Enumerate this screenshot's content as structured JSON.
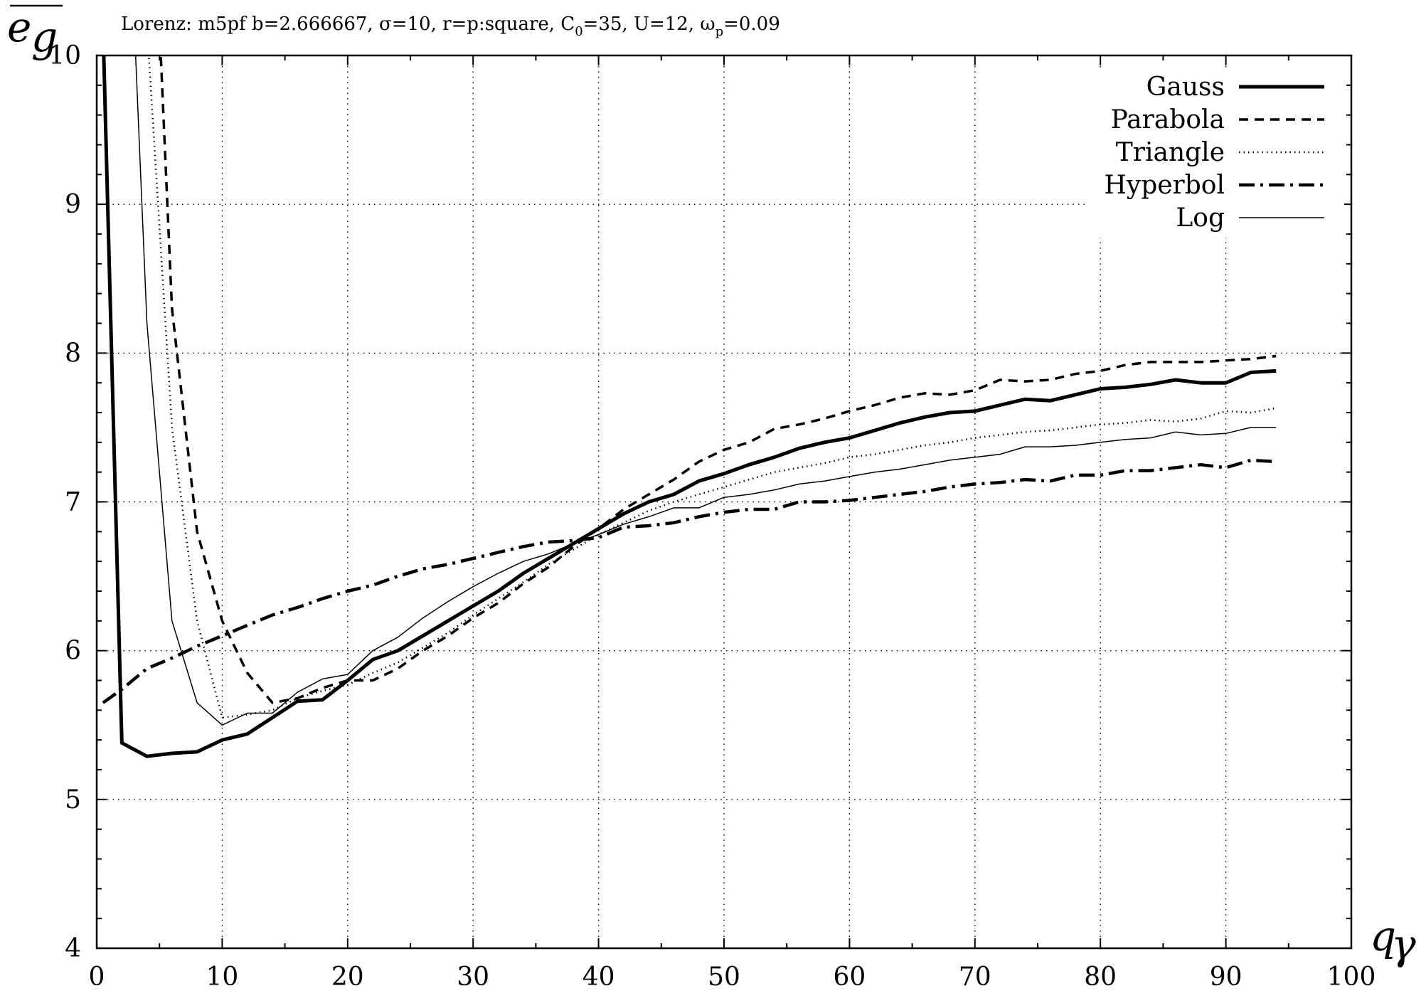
{
  "chart_data": {
    "type": "line",
    "title": {
      "prefix": "Lorenz: m5pf b=2.666667, σ=10, r=p:square, C",
      "c_sub": "0",
      "middle": "=35, U=12, ω",
      "w_sub": "p",
      "suffix": "=0.09"
    },
    "xlabel": {
      "base": "q",
      "sub": "γ"
    },
    "ylabel": "e",
    "ylabel_sub": "g",
    "xlim": [
      0,
      100
    ],
    "ylim": [
      4,
      10
    ],
    "xticks": [
      0,
      10,
      20,
      30,
      40,
      50,
      60,
      70,
      80,
      90,
      100
    ],
    "yticks": [
      4,
      5,
      6,
      7,
      8,
      9,
      10
    ],
    "grid": true,
    "legend_position": "top-right",
    "series": [
      {
        "name": "Gauss",
        "style": "thick-solid",
        "x": [
          0.5,
          2,
          4,
          6,
          8,
          10,
          12,
          14,
          16,
          18,
          20,
          22,
          24,
          26,
          28,
          30,
          32,
          34,
          36,
          38,
          40,
          42,
          44,
          46,
          48,
          50,
          52,
          54,
          56,
          58,
          60,
          62,
          64,
          66,
          68,
          70,
          72,
          74,
          76,
          78,
          80,
          82,
          84,
          86,
          88,
          90,
          92,
          94
        ],
        "y": [
          10.2,
          5.38,
          5.29,
          5.31,
          5.32,
          5.4,
          5.44,
          5.55,
          5.66,
          5.67,
          5.8,
          5.94,
          6.0,
          6.1,
          6.2,
          6.3,
          6.4,
          6.52,
          6.62,
          6.72,
          6.82,
          6.92,
          7.0,
          7.05,
          7.14,
          7.19,
          7.25,
          7.3,
          7.36,
          7.4,
          7.43,
          7.48,
          7.53,
          7.57,
          7.6,
          7.61,
          7.65,
          7.69,
          7.68,
          7.72,
          7.76,
          7.77,
          7.79,
          7.82,
          7.8,
          7.8,
          7.87,
          7.88
        ]
      },
      {
        "name": "Parabola",
        "style": "dashed",
        "x": [
          5,
          6,
          8,
          10,
          12,
          14,
          16,
          18,
          20,
          22,
          24,
          26,
          28,
          30,
          32,
          34,
          36,
          38,
          40,
          42,
          44,
          46,
          48,
          50,
          52,
          54,
          56,
          58,
          60,
          62,
          64,
          66,
          68,
          70,
          72,
          74,
          76,
          78,
          80,
          82,
          84,
          86,
          88,
          90,
          92,
          94
        ],
        "y": [
          10.2,
          8.3,
          6.8,
          6.2,
          5.85,
          5.65,
          5.68,
          5.75,
          5.8,
          5.8,
          5.88,
          6.0,
          6.1,
          6.22,
          6.32,
          6.45,
          6.56,
          6.7,
          6.82,
          6.95,
          7.05,
          7.15,
          7.27,
          7.35,
          7.4,
          7.49,
          7.52,
          7.56,
          7.61,
          7.65,
          7.7,
          7.73,
          7.72,
          7.75,
          7.82,
          7.81,
          7.82,
          7.86,
          7.88,
          7.92,
          7.94,
          7.94,
          7.94,
          7.95,
          7.96,
          7.98
        ]
      },
      {
        "name": "Triangle",
        "style": "dotted",
        "x": [
          4,
          6,
          8,
          10,
          12,
          14,
          16,
          18,
          20,
          22,
          24,
          26,
          28,
          30,
          32,
          34,
          36,
          38,
          40,
          42,
          44,
          46,
          48,
          50,
          52,
          54,
          56,
          58,
          60,
          62,
          64,
          66,
          68,
          70,
          72,
          74,
          76,
          78,
          80,
          82,
          84,
          86,
          88,
          90,
          92,
          94
        ],
        "y": [
          10.2,
          7.5,
          6.2,
          5.55,
          5.57,
          5.6,
          5.68,
          5.73,
          5.77,
          5.85,
          5.92,
          6.02,
          6.12,
          6.24,
          6.35,
          6.46,
          6.58,
          6.68,
          6.78,
          6.86,
          6.94,
          7.0,
          7.05,
          7.1,
          7.15,
          7.2,
          7.23,
          7.26,
          7.3,
          7.32,
          7.35,
          7.38,
          7.4,
          7.43,
          7.45,
          7.47,
          7.48,
          7.5,
          7.52,
          7.53,
          7.55,
          7.54,
          7.56,
          7.61,
          7.6,
          7.63
        ]
      },
      {
        "name": "Hyperbol",
        "style": "dash-dot",
        "x": [
          0.5,
          2,
          4,
          6,
          8,
          10,
          12,
          14,
          16,
          18,
          20,
          22,
          24,
          26,
          28,
          30,
          32,
          34,
          36,
          38,
          40,
          42,
          44,
          46,
          48,
          50,
          52,
          54,
          56,
          58,
          60,
          62,
          64,
          66,
          68,
          70,
          72,
          74,
          76,
          78,
          80,
          82,
          84,
          86,
          88,
          90,
          92,
          94
        ],
        "y": [
          5.65,
          5.74,
          5.88,
          5.95,
          6.03,
          6.1,
          6.17,
          6.24,
          6.29,
          6.35,
          6.4,
          6.44,
          6.5,
          6.55,
          6.58,
          6.62,
          6.66,
          6.7,
          6.73,
          6.74,
          6.76,
          6.83,
          6.84,
          6.86,
          6.9,
          6.93,
          6.95,
          6.95,
          7.0,
          7.0,
          7.01,
          7.03,
          7.05,
          7.07,
          7.1,
          7.12,
          7.13,
          7.15,
          7.14,
          7.18,
          7.18,
          7.21,
          7.21,
          7.23,
          7.25,
          7.23,
          7.28,
          7.27
        ]
      },
      {
        "name": "Log",
        "style": "thin-solid",
        "x": [
          3,
          4,
          6,
          8,
          10,
          12,
          14,
          16,
          18,
          20,
          22,
          24,
          26,
          28,
          30,
          32,
          34,
          36,
          38,
          40,
          42,
          44,
          46,
          48,
          50,
          52,
          54,
          56,
          58,
          60,
          62,
          64,
          66,
          68,
          70,
          72,
          74,
          76,
          78,
          80,
          82,
          84,
          86,
          88,
          90,
          92,
          94
        ],
        "y": [
          10.2,
          8.2,
          6.2,
          5.65,
          5.5,
          5.58,
          5.58,
          5.72,
          5.81,
          5.84,
          6.0,
          6.09,
          6.22,
          6.33,
          6.43,
          6.52,
          6.6,
          6.65,
          6.72,
          6.78,
          6.85,
          6.9,
          6.96,
          6.96,
          7.03,
          7.05,
          7.08,
          7.12,
          7.14,
          7.17,
          7.2,
          7.22,
          7.25,
          7.28,
          7.3,
          7.32,
          7.37,
          7.37,
          7.38,
          7.4,
          7.42,
          7.43,
          7.47,
          7.45,
          7.46,
          7.5,
          7.5
        ]
      }
    ]
  }
}
